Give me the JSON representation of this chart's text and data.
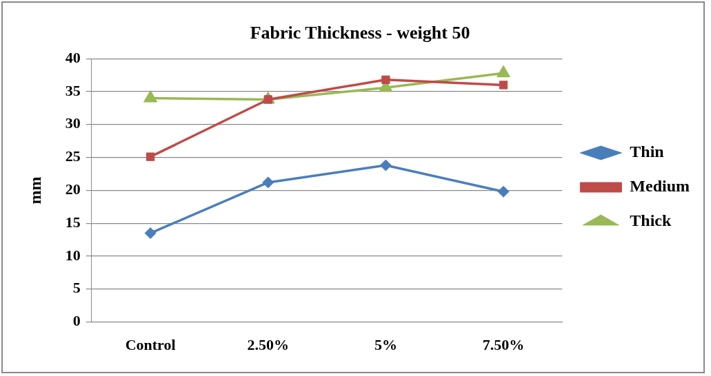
{
  "chart_data": {
    "type": "line",
    "title": "Fabric Thickness - weight 50",
    "ylabel": "mm",
    "categories": [
      "Control",
      "2.50%",
      "5%",
      "7.50%"
    ],
    "series": [
      {
        "name": "Thin",
        "color": "#4a7ebb",
        "marker": "diamond",
        "values": [
          13.5,
          21.2,
          23.8,
          19.8
        ]
      },
      {
        "name": "Medium",
        "color": "#be4b48",
        "marker": "square",
        "values": [
          25.1,
          33.8,
          36.8,
          36.0
        ]
      },
      {
        "name": "Thick",
        "color": "#98b954",
        "marker": "triangle",
        "values": [
          34.0,
          33.8,
          35.6,
          37.8
        ]
      }
    ],
    "ylim": [
      0,
      40
    ],
    "yticks": [
      0,
      5,
      10,
      15,
      20,
      25,
      30,
      35,
      40
    ],
    "grid": "y",
    "legend": "right",
    "line_style": "solid"
  }
}
